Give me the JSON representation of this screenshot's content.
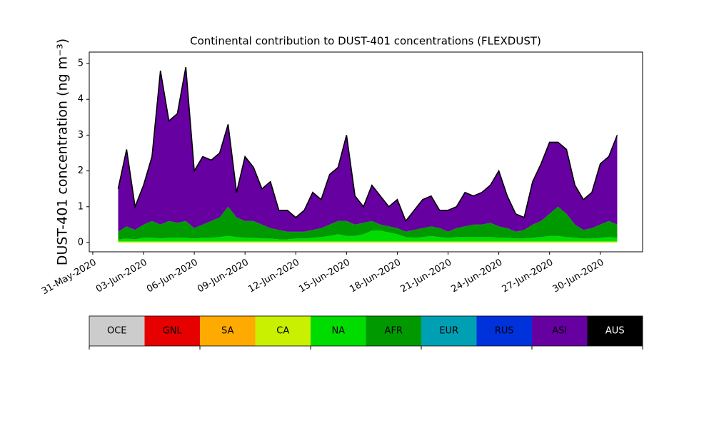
{
  "chart_data": {
    "type": "stackedarea",
    "title": "Continental contribution to DUST-401 concentrations (FLEXDUST)",
    "ylabel": "DUST-401 concentration (ng m⁻³)",
    "xlim": [
      "2020-05-30T19:00",
      "2020-07-02T12:00"
    ],
    "ylim": [
      -0.26,
      5.32
    ],
    "yticks": [
      0,
      1,
      2,
      3,
      4,
      5
    ],
    "xticks": [
      {
        "value": "2020-05-31T00:00",
        "label": "31-May-2020"
      },
      {
        "value": "2020-06-03T00:00",
        "label": "03-Jun-2020"
      },
      {
        "value": "2020-06-06T00:00",
        "label": "06-Jun-2020"
      },
      {
        "value": "2020-06-09T00:00",
        "label": "09-Jun-2020"
      },
      {
        "value": "2020-06-12T00:00",
        "label": "12-Jun-2020"
      },
      {
        "value": "2020-06-15T00:00",
        "label": "15-Jun-2020"
      },
      {
        "value": "2020-06-18T00:00",
        "label": "18-Jun-2020"
      },
      {
        "value": "2020-06-21T00:00",
        "label": "21-Jun-2020"
      },
      {
        "value": "2020-06-24T00:00",
        "label": "24-Jun-2020"
      },
      {
        "value": "2020-06-27T00:00",
        "label": "27-Jun-2020"
      },
      {
        "value": "2020-06-30T00:00",
        "label": "30-Jun-2020"
      }
    ],
    "x": [
      "2020-06-01T12:00",
      "2020-06-02T00:00",
      "2020-06-02T12:00",
      "2020-06-03T00:00",
      "2020-06-03T12:00",
      "2020-06-04T00:00",
      "2020-06-04T12:00",
      "2020-06-05T00:00",
      "2020-06-05T12:00",
      "2020-06-06T00:00",
      "2020-06-06T12:00",
      "2020-06-07T00:00",
      "2020-06-07T12:00",
      "2020-06-08T00:00",
      "2020-06-08T12:00",
      "2020-06-09T00:00",
      "2020-06-09T12:00",
      "2020-06-10T00:00",
      "2020-06-10T12:00",
      "2020-06-11T00:00",
      "2020-06-11T12:00",
      "2020-06-12T00:00",
      "2020-06-12T12:00",
      "2020-06-13T00:00",
      "2020-06-13T12:00",
      "2020-06-14T00:00",
      "2020-06-14T12:00",
      "2020-06-15T00:00",
      "2020-06-15T12:00",
      "2020-06-16T00:00",
      "2020-06-16T12:00",
      "2020-06-17T00:00",
      "2020-06-17T12:00",
      "2020-06-18T00:00",
      "2020-06-18T12:00",
      "2020-06-19T00:00",
      "2020-06-19T12:00",
      "2020-06-20T00:00",
      "2020-06-20T12:00",
      "2020-06-21T00:00",
      "2020-06-21T12:00",
      "2020-06-22T00:00",
      "2020-06-22T12:00",
      "2020-06-23T00:00",
      "2020-06-23T12:00",
      "2020-06-24T00:00",
      "2020-06-24T12:00",
      "2020-06-25T00:00",
      "2020-06-25T12:00",
      "2020-06-26T00:00",
      "2020-06-26T12:00",
      "2020-06-27T00:00",
      "2020-06-27T12:00",
      "2020-06-28T00:00",
      "2020-06-28T12:00",
      "2020-06-29T00:00",
      "2020-06-29T12:00",
      "2020-06-30T00:00",
      "2020-06-30T12:00",
      "2020-07-01T00:00"
    ],
    "series": [
      {
        "name": "CA",
        "color": "#c8f000",
        "values": [
          0.03,
          0.03,
          0.03,
          0.03,
          0.03,
          0.03,
          0.03,
          0.03,
          0.03,
          0.03,
          0.03,
          0.03,
          0.03,
          0.03,
          0.03,
          0.03,
          0.03,
          0.03,
          0.03,
          0.03,
          0.03,
          0.03,
          0.03,
          0.03,
          0.03,
          0.03,
          0.03,
          0.03,
          0.03,
          0.03,
          0.03,
          0.03,
          0.03,
          0.03,
          0.03,
          0.03,
          0.03,
          0.03,
          0.03,
          0.03,
          0.03,
          0.03,
          0.03,
          0.03,
          0.03,
          0.03,
          0.03,
          0.03,
          0.03,
          0.03,
          0.03,
          0.03,
          0.03,
          0.03,
          0.03,
          0.03,
          0.03,
          0.03,
          0.03,
          0.03
        ]
      },
      {
        "name": "NA",
        "color": "#00dc00",
        "values": [
          0.05,
          0.08,
          0.06,
          0.1,
          0.1,
          0.08,
          0.1,
          0.1,
          0.1,
          0.08,
          0.1,
          0.1,
          0.12,
          0.15,
          0.12,
          0.1,
          0.1,
          0.08,
          0.08,
          0.06,
          0.06,
          0.08,
          0.08,
          0.1,
          0.12,
          0.15,
          0.2,
          0.15,
          0.15,
          0.2,
          0.3,
          0.3,
          0.25,
          0.2,
          0.12,
          0.1,
          0.12,
          0.15,
          0.12,
          0.1,
          0.12,
          0.12,
          0.12,
          0.12,
          0.12,
          0.1,
          0.1,
          0.08,
          0.08,
          0.1,
          0.12,
          0.15,
          0.15,
          0.12,
          0.1,
          0.08,
          0.08,
          0.1,
          0.12,
          0.1
        ]
      },
      {
        "name": "AFR",
        "color": "#009a00",
        "values": [
          0.22,
          0.34,
          0.26,
          0.37,
          0.47,
          0.39,
          0.47,
          0.42,
          0.47,
          0.29,
          0.37,
          0.47,
          0.55,
          0.82,
          0.55,
          0.47,
          0.47,
          0.39,
          0.29,
          0.26,
          0.21,
          0.19,
          0.19,
          0.22,
          0.25,
          0.32,
          0.37,
          0.42,
          0.32,
          0.32,
          0.27,
          0.17,
          0.17,
          0.17,
          0.15,
          0.22,
          0.25,
          0.27,
          0.25,
          0.17,
          0.25,
          0.3,
          0.35,
          0.35,
          0.4,
          0.32,
          0.27,
          0.19,
          0.24,
          0.37,
          0.45,
          0.62,
          0.82,
          0.65,
          0.37,
          0.24,
          0.29,
          0.37,
          0.45,
          0.37
        ]
      },
      {
        "name": "ASI",
        "color": "#6600a0",
        "values": [
          1.2,
          2.15,
          0.65,
          1.1,
          1.8,
          4.3,
          2.8,
          3.05,
          4.3,
          1.6,
          1.9,
          1.7,
          1.8,
          2.3,
          0.7,
          1.8,
          1.5,
          1.0,
          1.3,
          0.55,
          0.6,
          0.4,
          0.6,
          1.05,
          0.8,
          1.4,
          1.5,
          2.4,
          0.8,
          0.45,
          1.0,
          0.8,
          0.55,
          0.8,
          0.3,
          0.55,
          0.8,
          0.85,
          0.5,
          0.6,
          0.6,
          0.95,
          0.8,
          0.9,
          1.05,
          1.55,
          0.9,
          0.5,
          0.35,
          1.2,
          1.6,
          2.0,
          1.8,
          1.8,
          1.1,
          0.85,
          1.0,
          1.7,
          1.8,
          2.5
        ]
      }
    ],
    "colorbar": [
      {
        "name": "OCE",
        "color": "#cccccc"
      },
      {
        "name": "GNL",
        "color": "#e60000"
      },
      {
        "name": "SA",
        "color": "#ffaa00"
      },
      {
        "name": "CA",
        "color": "#c8f000"
      },
      {
        "name": "NA",
        "color": "#00dc00"
      },
      {
        "name": "AFR",
        "color": "#009a00"
      },
      {
        "name": "EUR",
        "color": "#00a0b4"
      },
      {
        "name": "RUS",
        "color": "#0032dc"
      },
      {
        "name": "ASI",
        "color": "#6600a0"
      },
      {
        "name": "AUS",
        "color": "#000000",
        "text_color": "#ffffff"
      }
    ]
  }
}
